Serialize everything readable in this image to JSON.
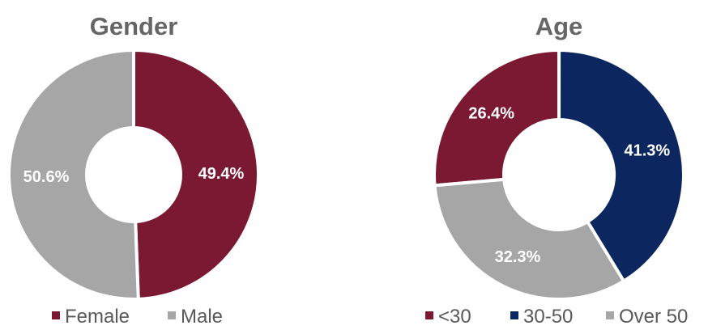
{
  "chart_data": [
    {
      "type": "pie",
      "title": "Gender",
      "categories": [
        "Female",
        "Male"
      ],
      "values": [
        49.4,
        50.6
      ],
      "labels": [
        "49.4%",
        "50.6%"
      ],
      "colors": [
        "#7b1832",
        "#a6a6a6"
      ],
      "donut": true,
      "legend": "bottom"
    },
    {
      "type": "pie",
      "title": "Age",
      "categories": [
        "<30",
        "30-50",
        "Over 50"
      ],
      "values": [
        26.4,
        41.3,
        32.3
      ],
      "labels": [
        "26.4%",
        "41.3%",
        "32.3%"
      ],
      "colors": [
        "#7b1832",
        "#0c2660",
        "#a6a6a6"
      ],
      "donut": true,
      "legend": "bottom"
    }
  ]
}
